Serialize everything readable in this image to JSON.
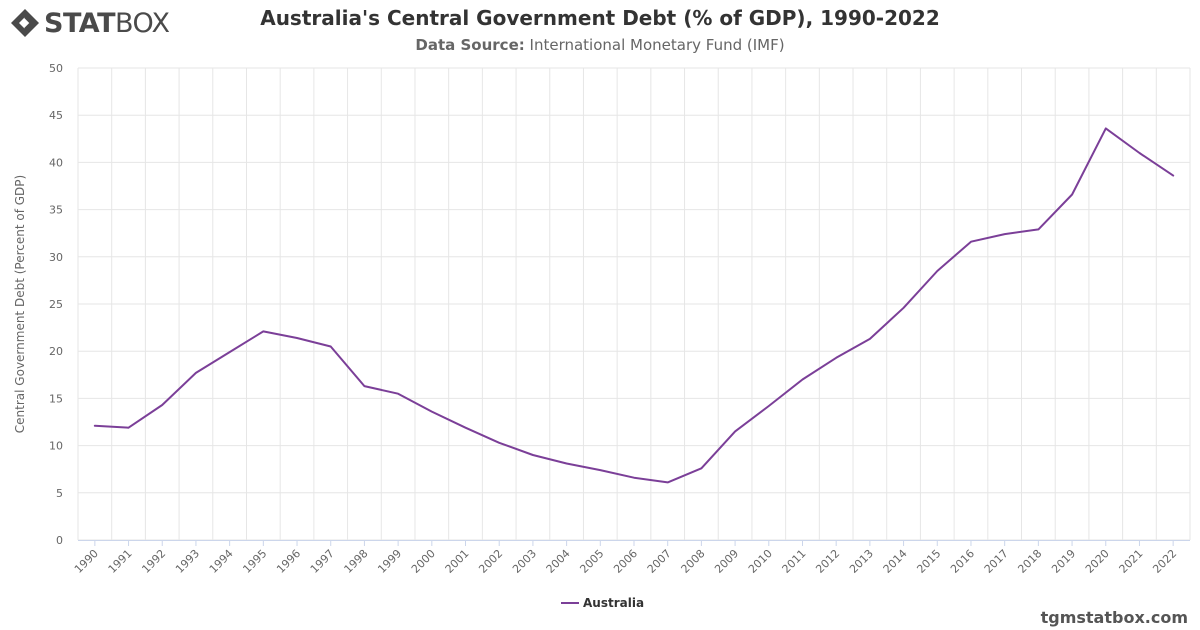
{
  "brand": {
    "logo_bold": "STAT",
    "logo_light": "BOX",
    "site": "tgmstatbox.com"
  },
  "header": {
    "title": "Australia's Central Government Debt (% of GDP), 1990-2022",
    "source_label": "Data Source:",
    "source_value": "International Monetary Fund (IMF)"
  },
  "colors": {
    "series": "#7b3f98",
    "grid": "#e6e6e6",
    "axis_text": "#666666"
  },
  "chart_data": {
    "type": "line",
    "title": "Australia's Central Government Debt (% of GDP), 1990-2022",
    "ylabel": "Central Government Debt (Percent of GDP)",
    "xlabel": "",
    "ylim": [
      0,
      50
    ],
    "yticks": [
      0,
      5,
      10,
      15,
      20,
      25,
      30,
      35,
      40,
      45,
      50
    ],
    "x": [
      "1990",
      "1991",
      "1992",
      "1993",
      "1994",
      "1995",
      "1996",
      "1997",
      "1998",
      "1999",
      "2000",
      "2001",
      "2002",
      "2003",
      "2004",
      "2005",
      "2006",
      "2007",
      "2008",
      "2009",
      "2010",
      "2011",
      "2012",
      "2013",
      "2014",
      "2015",
      "2016",
      "2017",
      "2018",
      "2019",
      "2020",
      "2021",
      "2022"
    ],
    "series": [
      {
        "name": "Australia",
        "values": [
          12.1,
          11.9,
          14.3,
          17.7,
          19.9,
          22.1,
          21.4,
          20.5,
          16.3,
          15.5,
          13.6,
          11.9,
          10.3,
          9.0,
          8.1,
          7.4,
          6.6,
          6.1,
          7.6,
          11.5,
          14.2,
          17.0,
          19.3,
          21.3,
          24.6,
          28.5,
          31.6,
          32.4,
          32.9,
          36.6,
          43.6,
          41.0,
          38.6
        ]
      }
    ],
    "legend": "bottom-center",
    "grid": true
  }
}
